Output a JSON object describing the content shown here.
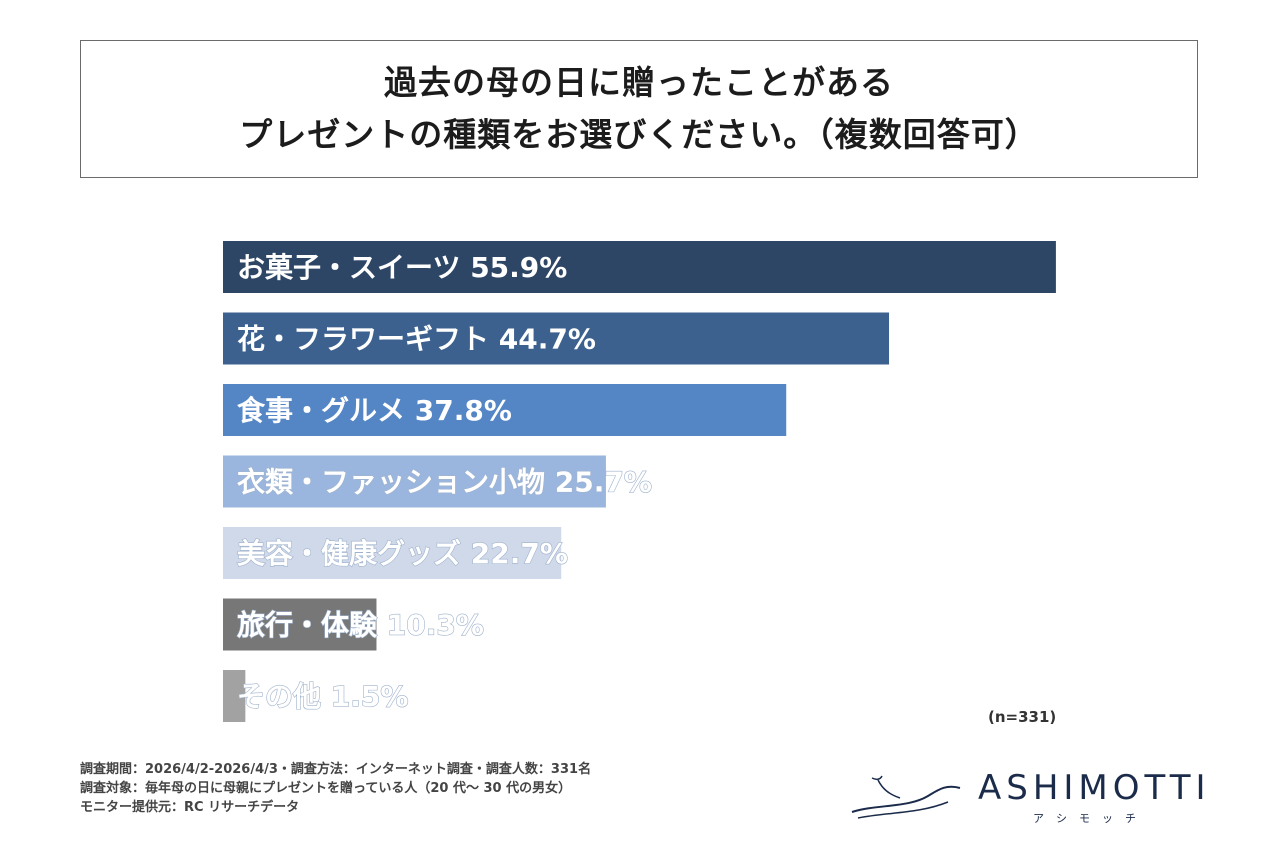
{
  "title": {
    "line1": "過去の母の日に贈ったことがある",
    "line2": "プレゼントの種類をお選びください。（複数回答可）"
  },
  "chart_data": {
    "type": "bar",
    "orientation": "horizontal",
    "categories": [
      "お菓子・スイーツ",
      "花・フラワーギフト",
      "食事・グルメ",
      "衣類・ファッション小物",
      "美容・健康グッズ",
      "旅行・体験",
      "その他"
    ],
    "values": [
      55.9,
      44.7,
      37.8,
      25.7,
      22.7,
      10.3,
      1.5
    ],
    "labels": [
      "お菓子・スイーツ 55.9%",
      "花・フラワーギフト 44.7%",
      "食事・グルメ 37.8%",
      "衣類・ファッション小物 25.7%",
      "美容・健康グッズ 22.7%",
      "旅行・体験 10.3%",
      "その他 1.5%"
    ],
    "colors": [
      "#2e4666",
      "#3d618f",
      "#5486c6",
      "#9ab6de",
      "#cfd9ea",
      "#777777",
      "#a2a2a2"
    ],
    "unit": "%",
    "xlim": [
      0,
      100
    ]
  },
  "n_label": "(n=331)",
  "footer": {
    "line1": "調査期間：2026/4/2-2026/4/3・調査方法：インターネット調査・調査人数：331名",
    "line2": "調査対象：毎年母の日に母親にプレゼントを贈っている人（20 代～ 30 代の男女）",
    "line3": "モニター提供元：RC リサーチデータ"
  },
  "logo": {
    "word": "ASHIMOTTI",
    "sub": "アシモッチ"
  }
}
